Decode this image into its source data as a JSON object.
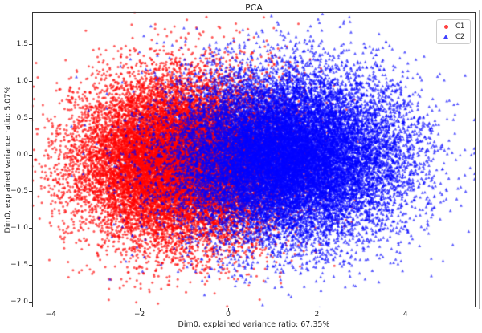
{
  "chart_data": {
    "type": "scatter",
    "title": "PCA",
    "xlabel": "Dim0, explained variance ratio: 67.35%",
    "ylabel": "Dim0, explained variance ratio: 5.07%",
    "xlim": [
      -4.42,
      5.58
    ],
    "ylim": [
      -2.08,
      1.94
    ],
    "x_tick_values": [
      -4,
      -2,
      0,
      2,
      4
    ],
    "x_tick_labels": [
      "−4",
      "−2",
      "0",
      "2",
      "4"
    ],
    "y_tick_values": [
      1.5,
      1.0,
      0.5,
      0.0,
      -0.5,
      -1.0,
      -1.5,
      -2.0
    ],
    "y_tick_labels": [
      "1.5",
      "1.0",
      "0.5",
      "0.0",
      "−0.5",
      "−1.0",
      "−1.5",
      "−2.0"
    ],
    "grid": false,
    "legend_position": "upper right",
    "series": [
      {
        "name": "C1",
        "marker": "circle",
        "color": "#ff0000",
        "alpha": 0.65,
        "n_points": 20000,
        "mean": [
          -1.05,
          -0.07
        ],
        "std": [
          1.15,
          0.56
        ],
        "seed": 42
      },
      {
        "name": "C2",
        "marker": "triangle-up",
        "color": "#0000ff",
        "alpha": 0.65,
        "n_points": 20000,
        "mean": [
          1.35,
          -0.02
        ],
        "std": [
          1.28,
          0.56
        ],
        "seed": 77
      }
    ]
  }
}
